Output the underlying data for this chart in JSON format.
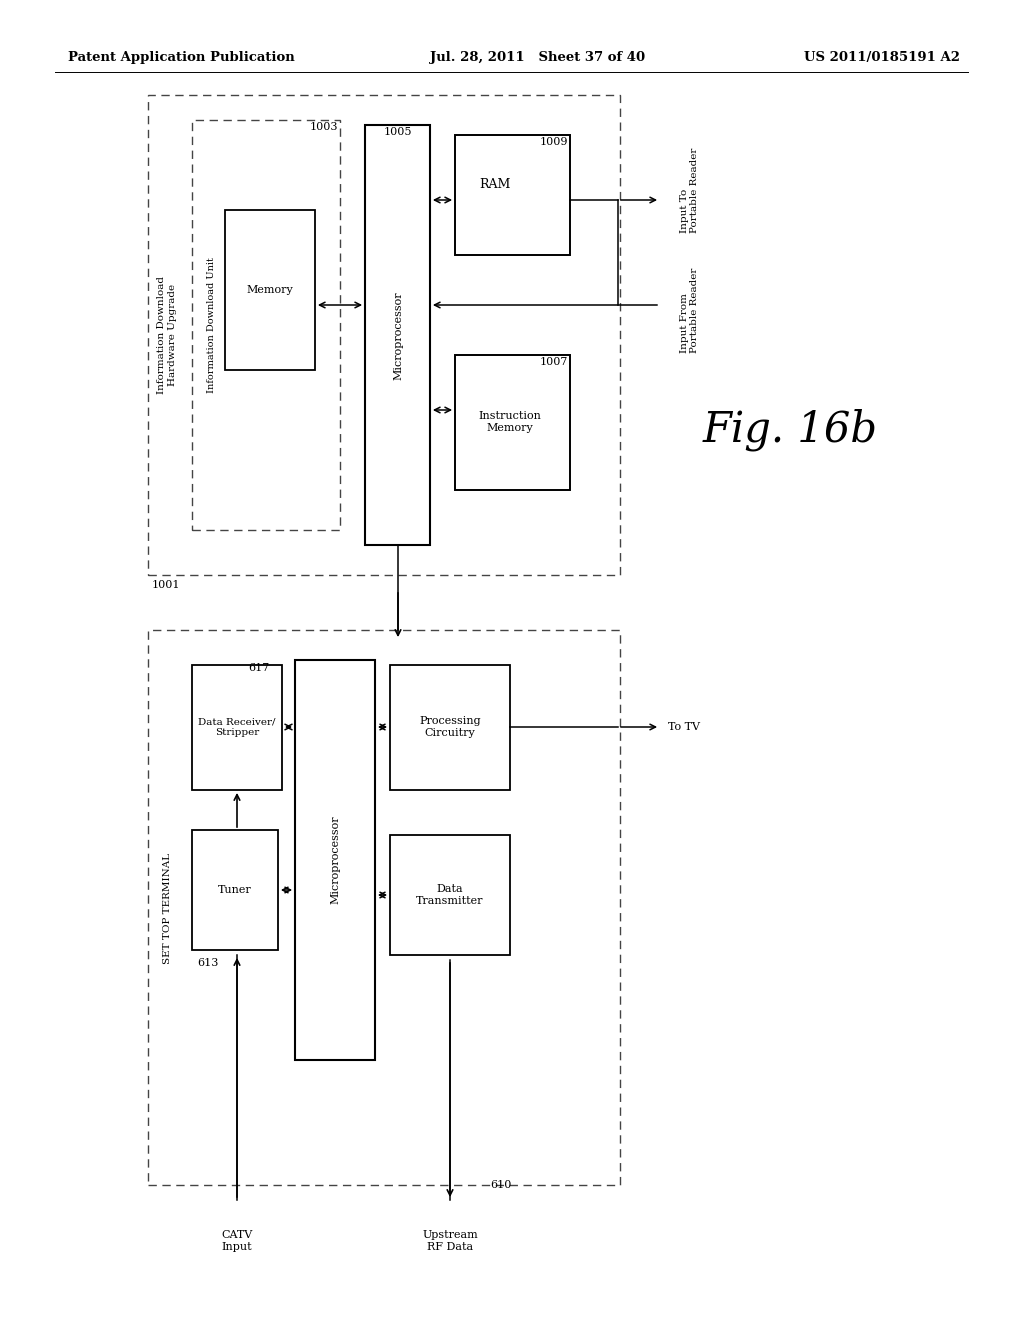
{
  "bg_color": "#ffffff",
  "header_left": "Patent Application Publication",
  "header_center": "Jul. 28, 2011   Sheet 37 of 40",
  "header_right": "US 2011/0185191 A2"
}
